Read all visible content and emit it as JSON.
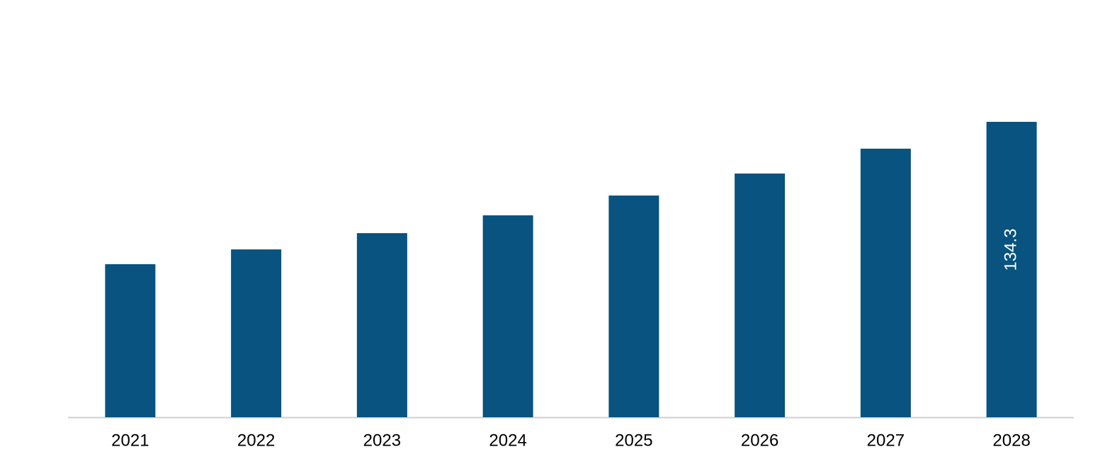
{
  "chart_data": {
    "type": "bar",
    "categories": [
      "2021",
      "2022",
      "2023",
      "2024",
      "2025",
      "2026",
      "2027",
      "2028"
    ],
    "values": [
      69.6,
      76.3,
      83.7,
      91.8,
      100.8,
      110.8,
      122.1,
      134.3
    ],
    "value_labels": [
      null,
      null,
      null,
      null,
      null,
      null,
      null,
      "134.3"
    ],
    "color": "#08537f",
    "ylim": [
      0,
      185
    ]
  }
}
